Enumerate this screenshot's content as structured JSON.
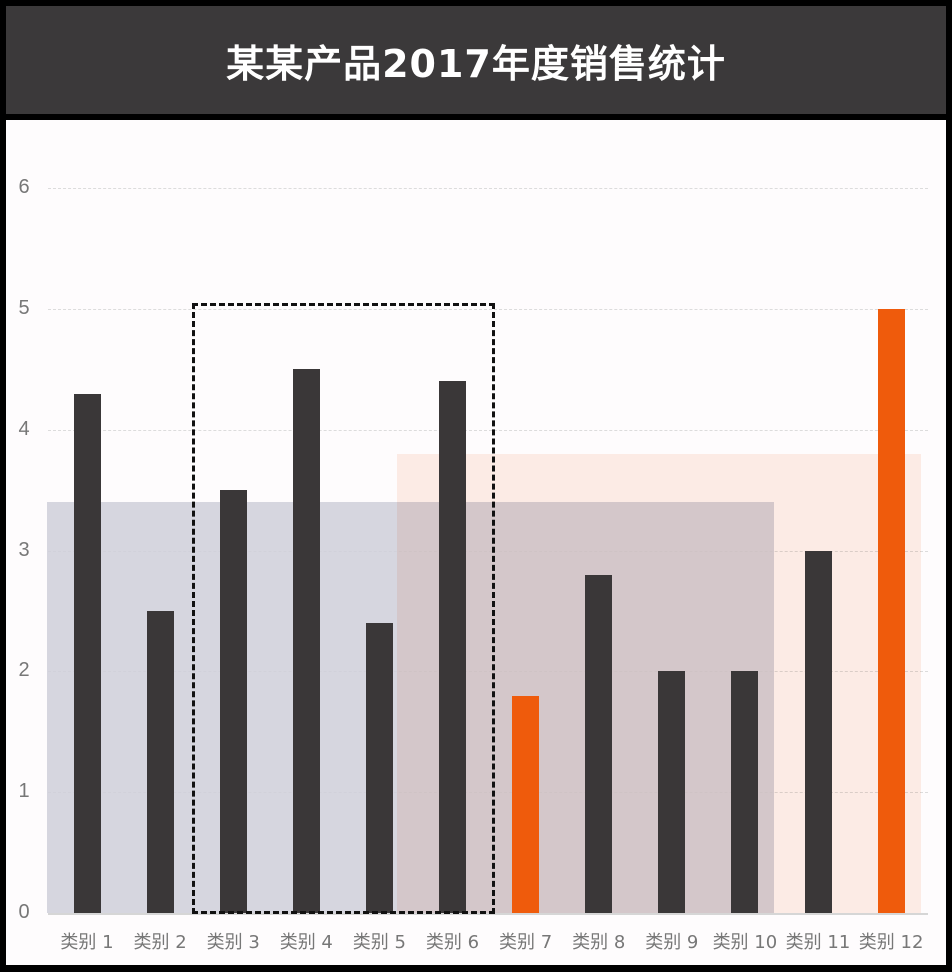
{
  "header": {
    "title": "某某产品2017年度销售统计"
  },
  "colors": {
    "bar_default": "#3a3738",
    "bar_highlight": "#ef5b0c",
    "header_bg": "#3b393a",
    "shade_gray": "#cfcfd9",
    "shade_peach": "#fde8df"
  },
  "chart_data": {
    "type": "bar",
    "title": "某某产品2017年度销售统计",
    "xlabel": "",
    "ylabel": "",
    "categories": [
      "类别 1",
      "类别 2",
      "类别 3",
      "类别 4",
      "类别 5",
      "类别 6",
      "类别 7",
      "类别 8",
      "类别 9",
      "类别 10",
      "类别 11",
      "类别 12"
    ],
    "values": [
      4.3,
      2.5,
      3.5,
      4.5,
      2.4,
      4.4,
      1.8,
      2.8,
      2.0,
      2.0,
      3.0,
      5.0
    ],
    "highlighted": [
      false,
      false,
      false,
      false,
      false,
      false,
      true,
      false,
      false,
      false,
      false,
      true
    ],
    "ylim": [
      0,
      6
    ],
    "yticks": [
      "0",
      "1",
      "2",
      "3",
      "4",
      "5",
      "6"
    ],
    "grid": true,
    "legend": "none",
    "annotations": [
      {
        "type": "shaded-region",
        "from": "类别 1",
        "to": "类别 10",
        "height": 3.4,
        "color": "gray"
      },
      {
        "type": "shaded-region",
        "from": "类别 5",
        "to": "类别 12",
        "height": 3.8,
        "color": "peach"
      },
      {
        "type": "dashed-box",
        "from": "类别 3",
        "to": "类别 6",
        "height": 5.05
      }
    ]
  }
}
